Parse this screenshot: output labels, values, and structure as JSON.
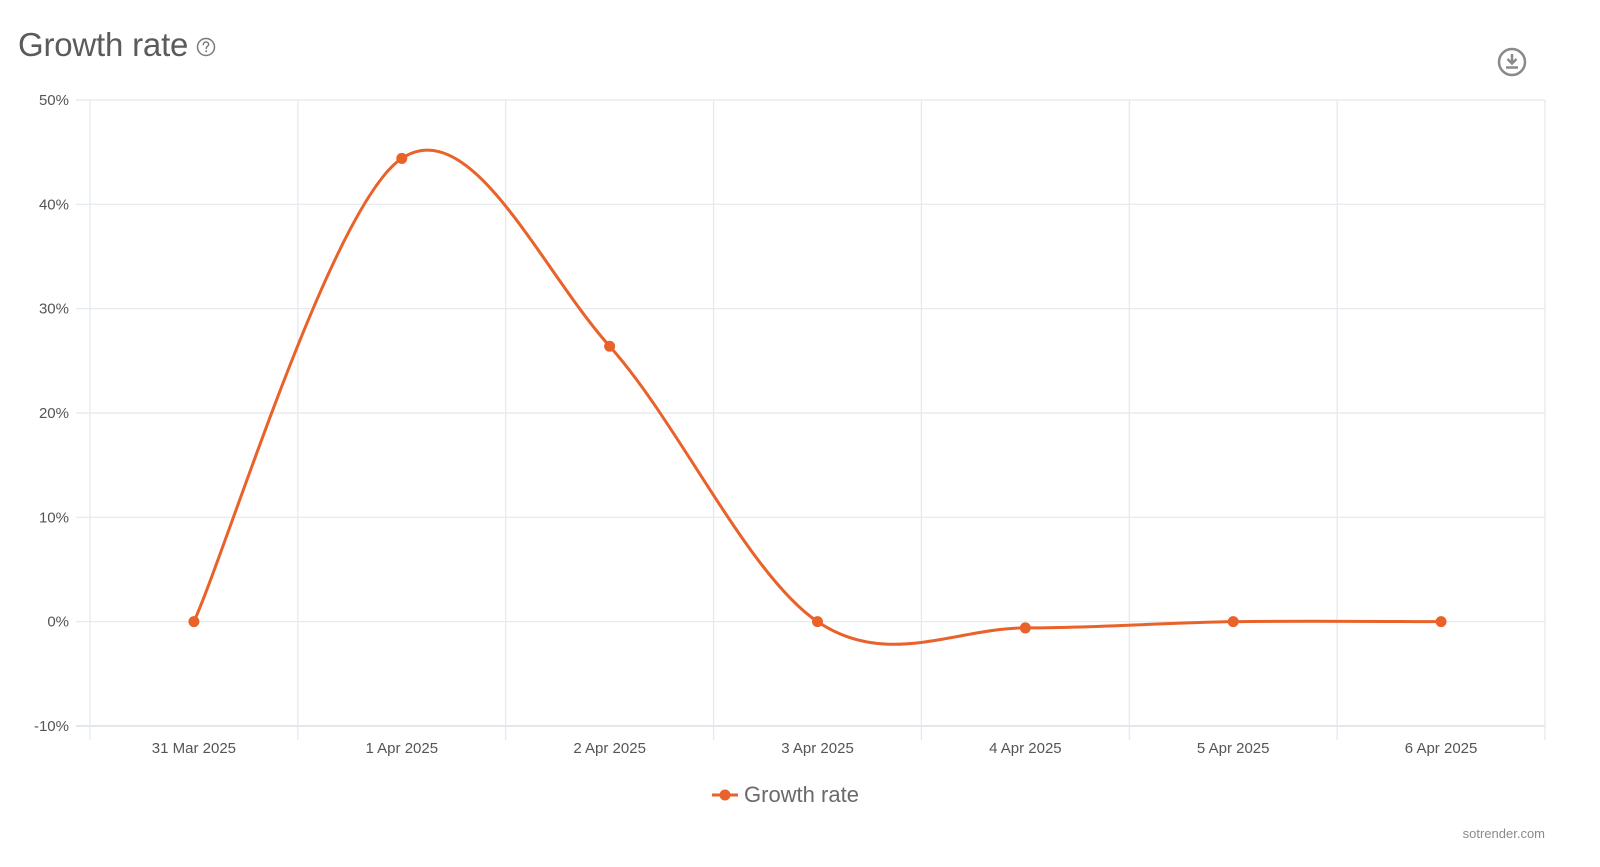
{
  "header": {
    "title": "Growth rate",
    "help_icon": "question-circle-icon",
    "download_icon": "download-circle-icon"
  },
  "legend": {
    "label": "Growth rate"
  },
  "footer": {
    "credit": "sotrender.com"
  },
  "colors": {
    "series": "#E8622A",
    "grid": "#e3e8ee",
    "axis_text": "#555555",
    "title": "#5b5b5b"
  },
  "chart_data": {
    "type": "line",
    "title": "Growth rate",
    "xlabel": "",
    "ylabel": "",
    "categories": [
      "31 Mar 2025",
      "1 Apr 2025",
      "2 Apr 2025",
      "3 Apr 2025",
      "4 Apr 2025",
      "5 Apr 2025",
      "6 Apr 2025"
    ],
    "series": [
      {
        "name": "Growth rate",
        "values": [
          0,
          44.4,
          26.4,
          0,
          -0.6,
          0,
          0
        ],
        "color": "#E8622A"
      }
    ],
    "ylim": [
      -10,
      50
    ],
    "yticks": [
      50,
      40,
      30,
      20,
      10,
      0,
      -10
    ],
    "ytick_labels": [
      "50%",
      "40%",
      "30%",
      "20%",
      "10%",
      "0%",
      "-10%"
    ],
    "grid": true,
    "smooth": true,
    "legend_position": "bottom-center"
  }
}
